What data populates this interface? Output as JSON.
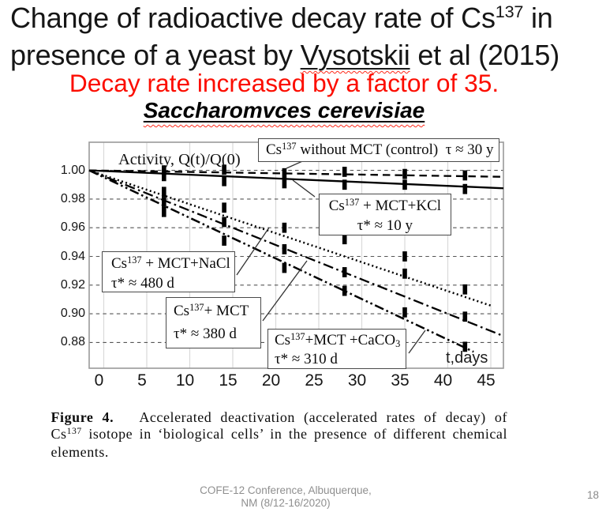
{
  "title": {
    "line1_pre": "Change of radioactive decay rate of Cs",
    "line1_sup": "137",
    "line1_post": " in",
    "line2_pre": "presence of a yeast by ",
    "line2_name": "Vysotskii",
    "line2_post": " et al (2015)"
  },
  "subtitle": "Decay rate increased by a factor of 35.",
  "species": "Saccharomvces cerevisiae",
  "chart_data": {
    "type": "line",
    "title": "Activity, Q(t)/Q(0)",
    "xlabel": "t,days",
    "xticks": [
      0,
      5,
      10,
      15,
      20,
      25,
      30,
      35,
      40,
      45
    ],
    "ytick_labels": [
      "1.00",
      "0.98",
      "0.96",
      "0.94",
      "0.92",
      "0.90",
      "0.88"
    ],
    "ytick_values": [
      1.0,
      0.98,
      0.96,
      0.94,
      0.92,
      0.9,
      0.88
    ],
    "xlim": [
      -1.7,
      46.5
    ],
    "ylim": [
      0.862,
      1.0196
    ],
    "grid": true,
    "series": [
      {
        "name": "Cs137 without MCT (control)",
        "tau": "τ ≈ 30 y",
        "style": "dashed",
        "fit_line": [
          [
            -1.7,
            1.0
          ],
          [
            46.5,
            0.9955
          ]
        ],
        "points": [
          [
            7,
            1.0
          ],
          [
            14,
            1.0005
          ],
          [
            21,
            0.998
          ],
          [
            28,
            0.999
          ],
          [
            35,
            0.9975
          ],
          [
            42,
            0.9965
          ]
        ]
      },
      {
        "name": "Cs137 + MCT+KCl",
        "tau": "τ* ≈ 10 y",
        "style": "solid",
        "fit_line": [
          [
            -1.7,
            1.0
          ],
          [
            46.5,
            0.9875
          ]
        ],
        "points": [
          [
            7,
            0.996
          ],
          [
            14,
            0.9925
          ],
          [
            21,
            0.991
          ],
          [
            28,
            0.99
          ],
          [
            35,
            0.99
          ],
          [
            42,
            0.987
          ]
        ]
      },
      {
        "name": "Cs137 + MCT+NaCl",
        "tau": "τ* ≈ 480 d",
        "style": "dotted",
        "fit_line": [
          [
            -1.7,
            1.0
          ],
          [
            45.1,
            0.9055
          ]
        ],
        "points": [
          [
            7,
            0.985
          ],
          [
            14,
            0.974
          ],
          [
            21,
            0.96
          ],
          [
            28,
            0.952
          ],
          [
            35,
            0.94
          ],
          [
            42,
            0.917
          ]
        ]
      },
      {
        "name": "Cs137 + MCT",
        "tau": "τ* ≈ 380 d",
        "style": "dashdot",
        "fit_line": [
          [
            -1.7,
            1.0
          ],
          [
            46.5,
            0.8845
          ]
        ],
        "points": [
          [
            7,
            0.978
          ],
          [
            14,
            0.964
          ],
          [
            21,
            0.945
          ],
          [
            28,
            0.929
          ],
          [
            35,
            0.928
          ],
          [
            42,
            0.898
          ]
        ]
      },
      {
        "name": "Cs137 + MCT + CaCO3",
        "tau": "τ* ≈ 310 d",
        "style": "dashdotdot",
        "fit_line": [
          [
            -1.7,
            1.0
          ],
          [
            43.0,
            0.8735
          ]
        ],
        "points": [
          [
            7,
            0.971
          ],
          [
            14,
            0.951
          ],
          [
            21,
            0.932
          ],
          [
            28,
            0.916
          ],
          [
            35,
            0.901
          ],
          [
            42,
            0.877
          ]
        ]
      }
    ]
  },
  "legend": {
    "control": {
      "pre": "Cs",
      "sup": "137",
      "post": " without MCT (control)  τ ≈ 30 y"
    },
    "kcl": {
      "pre": "Cs",
      "sup": "137",
      "post": " + MCT+KCl",
      "tau": "τ* ≈ 10 y"
    },
    "nacl": {
      "pre": "Cs",
      "sup": "137",
      "post": " + MCT+NaCl",
      "tau": "τ* ≈ 480 d"
    },
    "mct": {
      "pre": "Cs",
      "sup": "137",
      "post": "+ MCT",
      "tau": "τ* ≈ 380 d"
    },
    "caco3": {
      "pre": "Cs",
      "sup": "137",
      "post": "+MCT +CaCO",
      "sub": "3",
      "tau": "τ* ≈ 310 d"
    }
  },
  "caption": {
    "label": "Figure 4.",
    "line1_rest": "   Accelerated deactivation (accelerated rates of decay) of",
    "line2_pre": "Cs",
    "line2_sup": "137",
    "line2_rest": " isotope in ‘biological cells’ in the presence of different chemical",
    "line3": "elements."
  },
  "footer": {
    "line1": "COFE-12 Conference, Albuquerque,",
    "line2": "NM (8/12-16/2020)",
    "page": "18"
  }
}
